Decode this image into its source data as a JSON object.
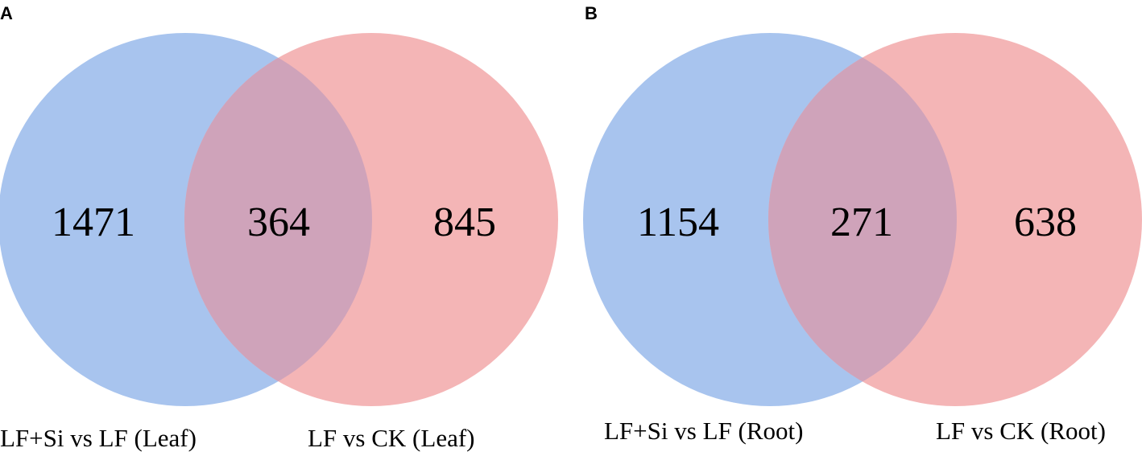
{
  "colors": {
    "set_a": "#a8c4ee",
    "set_b": "#f4b5b6",
    "overlap": "#cfa3ba"
  },
  "panels": [
    {
      "label": "A",
      "counts": {
        "left_only": "1471",
        "overlap": "364",
        "right_only": "845"
      },
      "sets": {
        "left": "LF+Si vs LF (Leaf)",
        "right": "LF vs CK (Leaf)"
      }
    },
    {
      "label": "B",
      "counts": {
        "left_only": "1154",
        "overlap": "271",
        "right_only": "638"
      },
      "sets": {
        "left": "LF+Si vs LF (Root)",
        "right": "LF vs CK (Root)"
      }
    }
  ]
}
